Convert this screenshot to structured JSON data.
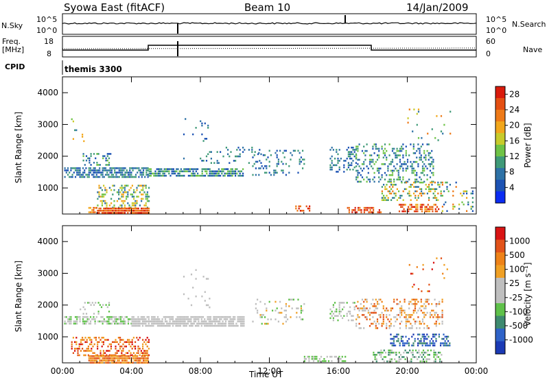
{
  "header": {
    "title": "Syowa East (fitACF)",
    "beam": "Beam 10",
    "date": "14/Jan/2009"
  },
  "aux_panels": {
    "nsky_label": "N.Sky",
    "nsky_tick_top": "10^5",
    "nsky_tick_bottom": "10^0",
    "nsearch_label": "N.Search",
    "nsearch_tick_top": "10^5",
    "nsearch_tick_bottom": "10^0",
    "freq_label_line1": "Freq.",
    "freq_label_line2": "[MHz]",
    "freq_tick_top": "18",
    "freq_tick_bottom": "8",
    "nave_label": "Nave",
    "nave_tick_top": "60",
    "nave_tick_bottom": "0",
    "cpid_label": "CPID",
    "cpid_value": "themis 3300"
  },
  "chart_data": [
    {
      "type": "heatmap",
      "panel": "power",
      "ylabel": "Slant Range [km]",
      "xlabel": "",
      "ylim": [
        180,
        4500
      ],
      "yticks": [
        "1000",
        "2000",
        "3000",
        "4000"
      ],
      "xlim_hours": [
        0,
        24
      ],
      "xticks": [
        "00:00",
        "04:00",
        "08:00",
        "12:00",
        "16:00",
        "20:00",
        "00:00"
      ],
      "colorbar": {
        "label": "Power [dB]",
        "ticks": [
          "4",
          "8",
          "12",
          "16",
          "20",
          "24",
          "28"
        ],
        "colors": [
          "#0b2cf2",
          "#1d53b4",
          "#2e72a6",
          "#3f9a78",
          "#6fc346",
          "#c8cb2b",
          "#f2a71c",
          "#ee7a18",
          "#e44f12",
          "#d91b0c"
        ]
      }
    },
    {
      "type": "heatmap",
      "panel": "velocity",
      "ylabel": "Slant Range [km]",
      "xlabel": "Time UT",
      "ylim": [
        180,
        4500
      ],
      "yticks": [
        "1000",
        "2000",
        "3000",
        "4000"
      ],
      "xlim_hours": [
        0,
        24
      ],
      "xticks": [
        "00:00",
        "04:00",
        "08:00",
        "12:00",
        "16:00",
        "20:00",
        "00:00"
      ],
      "colorbar": {
        "label": "Velocity [m s⁻¹]",
        "ticks": [
          "1000",
          "500",
          "100",
          "25",
          "-25",
          "-100",
          "-500",
          "-1000"
        ],
        "colors": [
          "#1b3ab5",
          "#2f63c8",
          "#3e8a6f",
          "#5fc14a",
          "#bfbfbf",
          "#bfbfbf",
          "#f0a024",
          "#ee8218",
          "#e2531a",
          "#d91414"
        ]
      }
    }
  ],
  "colors": {
    "axis": "#000000",
    "ground_scatter": "#bfbfbf"
  }
}
